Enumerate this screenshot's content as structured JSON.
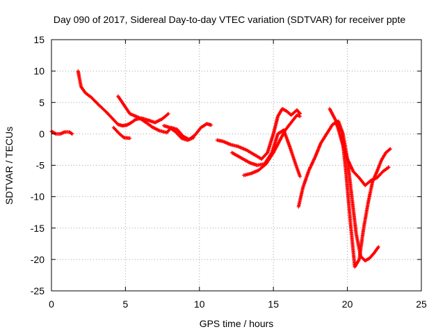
{
  "chart_data": {
    "type": "scatter",
    "title": "Day 090 of 2017, Sidereal Day-to-day VTEC variation (SDTVAR) for receiver ppte",
    "xlabel": "GPS time / hours",
    "ylabel": "SDTVAR / TECUs",
    "xlim": [
      0,
      25
    ],
    "ylim": [
      -25,
      15
    ],
    "xticks": [
      "0",
      "5",
      "10",
      "15",
      "20",
      "25"
    ],
    "yticks": [
      "15",
      "10",
      "5",
      "0",
      "-5",
      "-10",
      "-15",
      "-20",
      "-25"
    ],
    "grid": true,
    "legend": "none",
    "marker": "plus",
    "color": "#ff0000",
    "series": [
      {
        "x": [
          0.0,
          0.3,
          0.6,
          0.9,
          1.2,
          1.4
        ],
        "y": [
          0.4,
          0.0,
          0.0,
          0.3,
          0.3,
          0.0
        ]
      },
      {
        "x": [
          1.8,
          2.0,
          2.3,
          2.7,
          3.2,
          3.7,
          4.1,
          4.5,
          4.8,
          5.1,
          5.4,
          5.7,
          6.1,
          6.5,
          7.0,
          7.5,
          7.9
        ],
        "y": [
          10.0,
          7.5,
          6.5,
          5.8,
          4.6,
          3.5,
          2.5,
          1.5,
          1.3,
          1.4,
          1.8,
          2.3,
          2.5,
          2.2,
          1.8,
          2.4,
          3.2
        ]
      },
      {
        "x": [
          4.5,
          4.9,
          5.3,
          5.9,
          6.4,
          6.8,
          7.3,
          7.8,
          8.1,
          8.5,
          8.9,
          9.3,
          9.7,
          10.1,
          10.5,
          10.8
        ],
        "y": [
          6.0,
          4.6,
          3.2,
          2.6,
          1.8,
          1.1,
          0.5,
          0.2,
          1.0,
          0.7,
          -0.4,
          -0.9,
          -0.2,
          1.0,
          1.6,
          1.4
        ]
      },
      {
        "x": [
          4.2,
          4.6,
          4.9,
          5.3
        ],
        "y": [
          1.0,
          0.0,
          -0.6,
          -0.7
        ]
      },
      {
        "x": [
          7.6,
          8.0,
          8.4,
          8.8,
          9.2,
          9.6
        ],
        "y": [
          1.3,
          1.0,
          0.3,
          -0.7,
          -1.0,
          -0.6
        ]
      },
      {
        "x": [
          11.2,
          11.6,
          12.1,
          12.6,
          13.2,
          13.7,
          14.2,
          14.6,
          15.0,
          15.3,
          15.6,
          15.9,
          16.2,
          16.6,
          16.8
        ],
        "y": [
          -1.0,
          -1.2,
          -1.7,
          -2.0,
          -2.6,
          -3.3,
          -4.0,
          -3.0,
          0.0,
          2.8,
          4.0,
          3.6,
          3.0,
          3.8,
          3.2
        ]
      },
      {
        "x": [
          12.2,
          12.8,
          13.4,
          13.9,
          14.4,
          14.9,
          15.3,
          15.7,
          16.1,
          16.5,
          16.8
        ],
        "y": [
          -3.0,
          -3.8,
          -4.6,
          -5.0,
          -4.8,
          -3.0,
          0.0,
          0.6,
          -2.0,
          -4.8,
          -6.8
        ]
      },
      {
        "x": [
          13.0,
          13.5,
          14.0,
          14.5,
          15.0,
          15.4,
          15.8,
          16.2,
          16.6,
          16.8
        ],
        "y": [
          -6.6,
          -6.3,
          -5.8,
          -4.8,
          -3.0,
          -1.2,
          0.6,
          1.8,
          3.0,
          2.8
        ]
      },
      {
        "x": [
          16.7,
          17.0,
          17.4,
          17.8,
          18.2,
          18.6,
          19.0,
          19.4,
          19.7,
          20.0,
          20.3,
          20.6,
          20.9,
          21.2,
          21.5,
          21.8,
          22.1
        ],
        "y": [
          -11.6,
          -8.5,
          -5.8,
          -3.8,
          -1.5,
          0.0,
          1.5,
          2.0,
          0.0,
          -4.0,
          -10.0,
          -16.0,
          -19.5,
          -20.2,
          -19.8,
          -19.0,
          -18.0
        ]
      },
      {
        "x": [
          18.8,
          19.2,
          19.6,
          20.0,
          20.4,
          20.8,
          21.2,
          21.6,
          22.0,
          22.4,
          22.8
        ],
        "y": [
          4.0,
          2.2,
          -1.0,
          -4.0,
          -6.0,
          -7.0,
          -8.2,
          -7.4,
          -7.0,
          -6.0,
          -5.3
        ]
      },
      {
        "x": [
          19.3,
          19.6,
          19.9,
          20.2,
          20.5,
          20.8,
          21.1,
          21.4,
          21.7,
          22.0,
          22.3,
          22.6,
          22.9
        ],
        "y": [
          1.5,
          0.5,
          -6.0,
          -14.0,
          -21.2,
          -20.0,
          -15.0,
          -11.0,
          -7.6,
          -6.0,
          -4.2,
          -3.0,
          -2.4
        ]
      }
    ]
  }
}
